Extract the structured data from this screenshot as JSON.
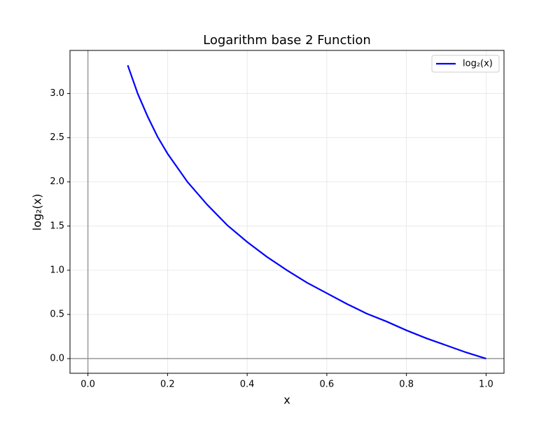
{
  "chart_data": {
    "type": "line",
    "title": "Logarithm base 2 Function",
    "xlabel": "x",
    "ylabel": "log₂(x)",
    "x": [
      0.1,
      0.125,
      0.15,
      0.175,
      0.2,
      0.25,
      0.3,
      0.35,
      0.4,
      0.45,
      0.5,
      0.55,
      0.6,
      0.65,
      0.7,
      0.75,
      0.8,
      0.85,
      0.9,
      0.95,
      1.0
    ],
    "series": [
      {
        "name": "log₂(x)",
        "color": "#0000ff",
        "values": [
          3.32,
          3.0,
          2.74,
          2.51,
          2.32,
          2.0,
          1.74,
          1.51,
          1.32,
          1.15,
          1.0,
          0.86,
          0.74,
          0.62,
          0.51,
          0.42,
          0.32,
          0.23,
          0.15,
          0.07,
          0.0
        ]
      }
    ],
    "xlim": [
      -0.045,
      1.045
    ],
    "ylim": [
      -0.166,
      3.488
    ],
    "xticks": [
      {
        "value": 0,
        "label": "0.0"
      },
      {
        "value": 0.2,
        "label": "0.2"
      },
      {
        "value": 0.4,
        "label": "0.4"
      },
      {
        "value": 0.6,
        "label": "0.6"
      },
      {
        "value": 0.8,
        "label": "0.8"
      },
      {
        "value": 1,
        "label": "1.0"
      }
    ],
    "yticks": [
      {
        "value": 0,
        "label": "0.0"
      },
      {
        "value": 0.5,
        "label": "0.5"
      },
      {
        "value": 1,
        "label": "1.0"
      },
      {
        "value": 1.5,
        "label": "1.5"
      },
      {
        "value": 2,
        "label": "2.0"
      },
      {
        "value": 2.5,
        "label": "2.5"
      },
      {
        "value": 3,
        "label": "3.0"
      }
    ],
    "axhline": 0,
    "axvline": 0,
    "grid": true,
    "legend": "upper right"
  }
}
